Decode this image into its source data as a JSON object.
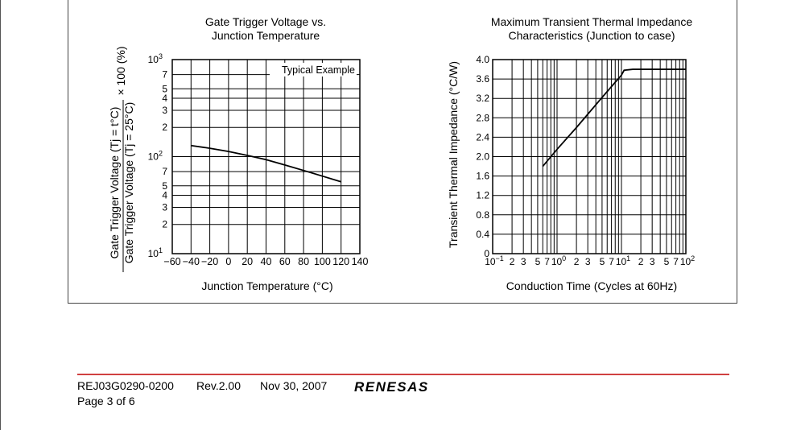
{
  "chart_data": [
    {
      "type": "line",
      "title": "Gate Trigger Voltage vs.\nJunction Temperature",
      "xlabel": "Junction Temperature   (°C)",
      "ylabel_top": "Gate Trigger Voltage   (Tj = t°C)",
      "ylabel_bottom": "Gate Trigger Voltage   (Tj = 25°C)",
      "ylabel_suffix": "× 100 (%)",
      "annotation": "Typical Example",
      "x_scale": "linear",
      "y_scale": "log",
      "xlim": [
        -60,
        140
      ],
      "ylim": [
        10,
        1000
      ],
      "grid": true,
      "x_ticks": [
        "−60",
        "−40",
        "−20",
        "0",
        "20",
        "40",
        "60",
        "80",
        "100",
        "120",
        "140"
      ],
      "y_tick_values": [
        10,
        20,
        30,
        40,
        50,
        70,
        100,
        200,
        300,
        400,
        500,
        700,
        1000
      ],
      "y_tick_mantissa": [
        "",
        "2",
        "3",
        "4",
        "5",
        "7",
        "",
        "2",
        "3",
        "4",
        "5",
        "7",
        ""
      ],
      "y_tick_decades": [
        {
          "value": 10,
          "base": "10",
          "exp": "1"
        },
        {
          "value": 100,
          "base": "10",
          "exp": "2"
        },
        {
          "value": 1000,
          "base": "10",
          "exp": "3"
        }
      ],
      "series": [
        {
          "x": [
            -40,
            -20,
            0,
            20,
            40,
            60,
            80,
            100,
            120
          ],
          "y": [
            130,
            122,
            113,
            103,
            93,
            82,
            72,
            63,
            55
          ]
        }
      ]
    },
    {
      "type": "line",
      "title": "Maximum Transient Thermal Impedance\nCharacteristics (Junction to case)",
      "xlabel": "Conduction Time (Cycles at 60Hz)",
      "ylabel": "Transient Thermal Impedance   (°C/W)",
      "x_scale": "log",
      "y_scale": "linear",
      "xlim": [
        0.1,
        100
      ],
      "ylim": [
        0,
        4.0
      ],
      "grid": true,
      "y_ticks": [
        "0",
        "0.4",
        "0.8",
        "1.2",
        "1.6",
        "2.0",
        "2.4",
        "2.8",
        "3.2",
        "3.6",
        "4.0"
      ],
      "x_tick_values": [
        0.1,
        0.2,
        0.3,
        0.5,
        0.7,
        1,
        2,
        3,
        5,
        7,
        10,
        20,
        30,
        50,
        70,
        100
      ],
      "x_tick_mantissa": [
        "",
        "2",
        "3",
        "5",
        "7",
        "",
        "2",
        "3",
        "5",
        "7",
        "",
        "2",
        "3",
        "5",
        "7",
        ""
      ],
      "x_tick_decades": [
        {
          "value": 0.1,
          "base": "10",
          "exp": "−1"
        },
        {
          "value": 1,
          "base": "10",
          "exp": "0"
        },
        {
          "value": 10,
          "base": "10",
          "exp": "1"
        },
        {
          "value": 100,
          "base": "10",
          "exp": "2"
        }
      ],
      "series": [
        {
          "x": [
            0.6,
            1,
            2,
            5,
            10,
            11,
            15,
            100
          ],
          "y": [
            1.8,
            2.15,
            2.6,
            3.22,
            3.68,
            3.78,
            3.8,
            3.8
          ]
        }
      ]
    }
  ],
  "footer": {
    "doc_id": "REJ03G0290-0200",
    "revision": "Rev.2.00",
    "date": "Nov 30, 2007",
    "page": "Page 3 of 6",
    "logo_text": "RENESAS",
    "rule_color": "#d04040",
    "logo_color": "#c8102e"
  }
}
